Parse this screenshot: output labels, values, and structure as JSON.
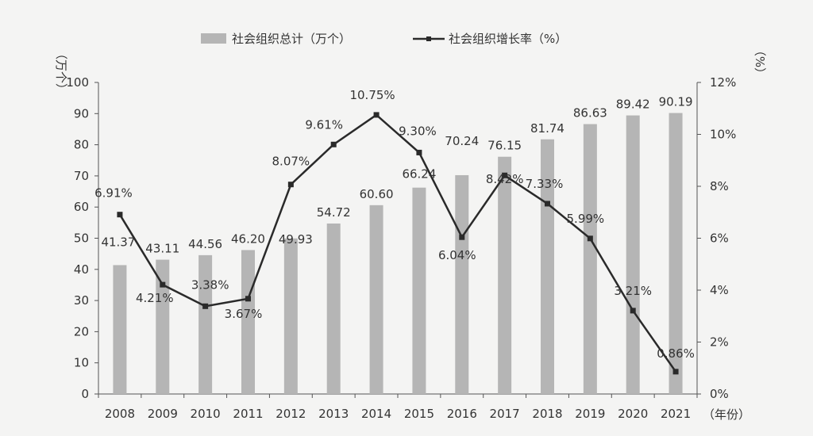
{
  "chart_data": {
    "type": "bar+line",
    "title": "",
    "categories": [
      "2008",
      "2009",
      "2010",
      "2011",
      "2012",
      "2013",
      "2014",
      "2015",
      "2016",
      "2017",
      "2018",
      "2019",
      "2020",
      "2021"
    ],
    "series": [
      {
        "name": "社会组织总计（万个）",
        "type": "bar",
        "axis": "left",
        "values": [
          41.37,
          43.11,
          44.56,
          46.2,
          49.93,
          54.72,
          60.6,
          66.24,
          70.24,
          76.15,
          81.74,
          86.63,
          89.42,
          90.19
        ],
        "labels": [
          "41.37",
          "43.11",
          "44.56",
          "46.20",
          "49.93",
          "54.72",
          "60.60",
          "66.24",
          "70.24",
          "76.15",
          "81.74",
          "86.63",
          "89.42",
          "90.19"
        ]
      },
      {
        "name": "社会组织增长率（%）",
        "type": "line",
        "axis": "right",
        "values": [
          6.91,
          4.21,
          3.38,
          3.67,
          8.07,
          9.61,
          10.75,
          9.3,
          6.04,
          8.42,
          7.33,
          5.99,
          3.21,
          0.86
        ],
        "labels": [
          "6.91%",
          "4.21%",
          "3.38%",
          "3.67%",
          "8.07%",
          "9.61%",
          "10.75%",
          "9.30%",
          "6.04%",
          "8.42%",
          "7.33%",
          "5.99%",
          "3.21%",
          "0.86%"
        ]
      }
    ],
    "y_left": {
      "label": "（万个）",
      "ylim": [
        0,
        100
      ],
      "ticks": [
        "0",
        "10",
        "20",
        "30",
        "40",
        "50",
        "60",
        "70",
        "80",
        "90",
        "100"
      ]
    },
    "y_right": {
      "label": "（%）",
      "ylim": [
        0,
        12
      ],
      "ticks": [
        "0%",
        "2%",
        "4%",
        "6%",
        "8%",
        "10%",
        "12%"
      ]
    },
    "x_label": "（年份）",
    "legend_position": "top-center",
    "grid": false,
    "colors": {
      "bar": "#b5b5b5",
      "line": "#2a2a2a",
      "marker": "#2a2a2a",
      "text": "#333333",
      "background": "#f4f4f3"
    }
  }
}
